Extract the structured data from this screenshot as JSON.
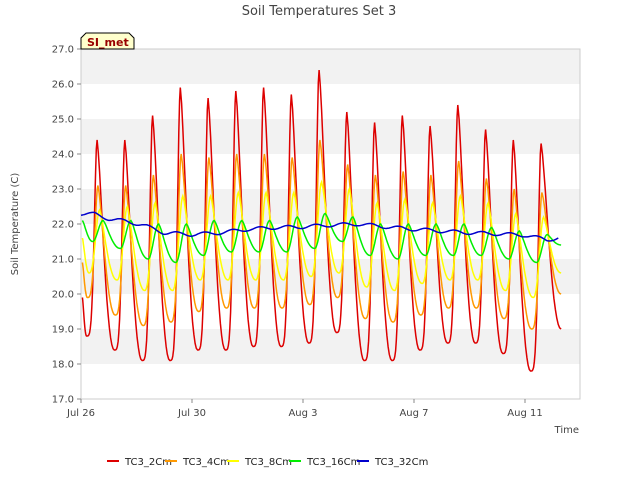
{
  "chart_data": {
    "type": "line",
    "title": "Soil Temperatures Set 3",
    "xlabel": "Time",
    "ylabel": "Soil Temperature (C)",
    "badge": "SI_met",
    "x_range_days": [
      0,
      17.5
    ],
    "x_start_label": "Jul 26",
    "x_ticks": [
      {
        "day": 0,
        "label": "Jul 26"
      },
      {
        "day": 4,
        "label": "Jul 30"
      },
      {
        "day": 8,
        "label": "Aug 3"
      },
      {
        "day": 12,
        "label": "Aug 7"
      },
      {
        "day": 16,
        "label": "Aug 11"
      }
    ],
    "ylim": [
      17.0,
      27.0
    ],
    "y_ticks": [
      "17.0",
      "18.0",
      "19.0",
      "20.0",
      "21.0",
      "22.0",
      "23.0",
      "24.0",
      "25.0",
      "26.0",
      "27.0"
    ],
    "grid": "horizontal alternating bands",
    "legend_position": "bottom",
    "series": [
      {
        "name": "TC3_2Cm",
        "color": "#dd0000",
        "phase": 0.58,
        "sharp": 3.0,
        "daily": [
          [
            19.9,
            18.8,
            24.4
          ],
          [
            18.4,
            24.4
          ],
          [
            18.1,
            25.1
          ],
          [
            18.1,
            25.9
          ],
          [
            18.4,
            25.6
          ],
          [
            18.4,
            25.8
          ],
          [
            18.5,
            25.9
          ],
          [
            18.5,
            25.7
          ],
          [
            18.6,
            26.4
          ],
          [
            18.9,
            25.2
          ],
          [
            18.1,
            24.9
          ],
          [
            18.1,
            25.1
          ],
          [
            18.4,
            24.8
          ],
          [
            18.6,
            25.4
          ],
          [
            18.6,
            24.7
          ],
          [
            18.3,
            24.4
          ],
          [
            17.8,
            24.3
          ],
          [
            19.0
          ]
        ]
      },
      {
        "name": "TC3_4Cm",
        "color": "#ff9900",
        "phase": 0.61,
        "sharp": 2.5,
        "daily": [
          [
            20.9,
            19.9,
            23.1
          ],
          [
            19.4,
            23.1
          ],
          [
            19.1,
            23.4
          ],
          [
            19.2,
            24.0
          ],
          [
            19.5,
            23.9
          ],
          [
            19.6,
            24.0
          ],
          [
            19.6,
            24.0
          ],
          [
            19.6,
            23.9
          ],
          [
            19.7,
            24.4
          ],
          [
            19.9,
            23.7
          ],
          [
            19.3,
            23.4
          ],
          [
            19.2,
            23.5
          ],
          [
            19.4,
            23.4
          ],
          [
            19.6,
            23.8
          ],
          [
            19.6,
            23.3
          ],
          [
            19.3,
            23.0
          ],
          [
            19.0,
            22.9
          ],
          [
            20.0
          ]
        ]
      },
      {
        "name": "TC3_8Cm",
        "color": "#ffff00",
        "phase": 0.67,
        "sharp": 1.6,
        "daily": [
          [
            21.6,
            20.6,
            22.4
          ],
          [
            20.4,
            22.5
          ],
          [
            20.1,
            22.6
          ],
          [
            20.1,
            22.8
          ],
          [
            20.4,
            22.8
          ],
          [
            20.4,
            22.9
          ],
          [
            20.4,
            22.9
          ],
          [
            20.4,
            22.9
          ],
          [
            20.5,
            23.2
          ],
          [
            20.6,
            23.0
          ],
          [
            20.2,
            22.6
          ],
          [
            20.1,
            22.7
          ],
          [
            20.3,
            22.6
          ],
          [
            20.4,
            22.8
          ],
          [
            20.4,
            22.6
          ],
          [
            20.1,
            22.3
          ],
          [
            19.9,
            22.2
          ],
          [
            20.6
          ]
        ]
      },
      {
        "name": "TC3_16Cm",
        "color": "#00ee00",
        "phase": 0.8,
        "sharp": 1.0,
        "daily": [
          [
            22.1,
            21.5,
            22.1
          ],
          [
            21.3,
            22.1
          ],
          [
            21.0,
            22.0
          ],
          [
            20.9,
            22.0
          ],
          [
            21.1,
            22.1
          ],
          [
            21.2,
            22.1
          ],
          [
            21.2,
            22.1
          ],
          [
            21.2,
            22.2
          ],
          [
            21.3,
            22.3
          ],
          [
            21.5,
            22.2
          ],
          [
            21.1,
            22.0
          ],
          [
            21.0,
            22.0
          ],
          [
            21.1,
            22.0
          ],
          [
            21.1,
            22.0
          ],
          [
            21.1,
            21.9
          ],
          [
            21.0,
            21.8
          ],
          [
            20.9,
            21.7
          ],
          [
            21.4
          ]
        ]
      },
      {
        "name": "TC3_32Cm",
        "color": "#0000cc",
        "points": [
          [
            0.0,
            22.3
          ],
          [
            0.5,
            22.28
          ],
          [
            1.0,
            22.15
          ],
          [
            1.6,
            22.08
          ],
          [
            2.2,
            21.98
          ],
          [
            3.0,
            21.75
          ],
          [
            4.0,
            21.7
          ],
          [
            5.0,
            21.75
          ],
          [
            6.0,
            21.85
          ],
          [
            7.0,
            21.9
          ],
          [
            8.0,
            21.92
          ],
          [
            9.0,
            21.97
          ],
          [
            10.0,
            22.0
          ],
          [
            11.0,
            21.92
          ],
          [
            12.0,
            21.85
          ],
          [
            13.0,
            21.8
          ],
          [
            14.0,
            21.75
          ],
          [
            15.0,
            21.72
          ],
          [
            16.0,
            21.68
          ],
          [
            16.8,
            21.55
          ],
          [
            17.2,
            21.6
          ]
        ],
        "ripple": 0.05
      }
    ]
  }
}
